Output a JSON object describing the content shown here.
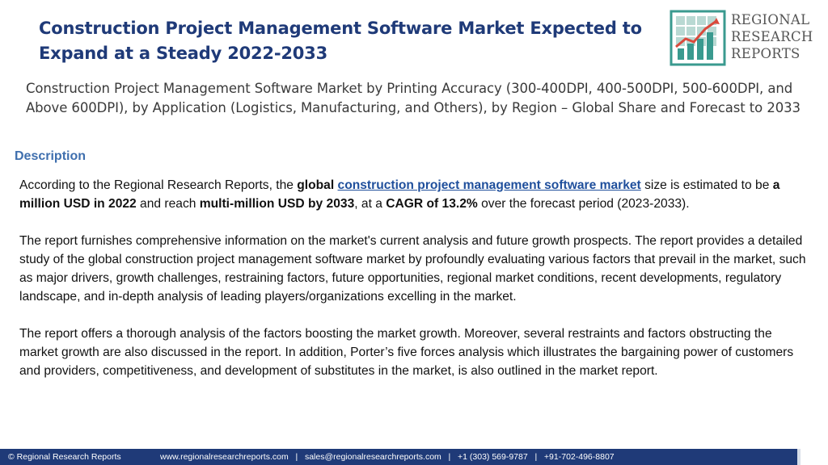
{
  "header": {
    "title_line1": "Construction Project Management Software Market Expected to",
    "title_line2": "Expand at a Steady 2022-2033"
  },
  "logo": {
    "line1": "REGIONAL",
    "line2": "RESEARCH",
    "line3": "REPORTS",
    "icon": "bar-chart-growth-icon",
    "colors": {
      "teal": "#3a9a8f",
      "red": "#d94a3c",
      "grid": "#b9d9d3"
    }
  },
  "subtitle": "Construction Project Management Software Market by Printing Accuracy (300-400DPI, 400-500DPI, 500-600DPI, and Above 600DPI), by Application (Logistics, Manufacturing, and Others), by Region – Global Share and Forecast to 2033",
  "description": {
    "heading": "Description",
    "p1": {
      "t1": "According to the Regional Research Reports, the ",
      "b1": "global",
      "t2": " ",
      "link": "construction project management software market",
      "t3": " size is estimated to be ",
      "b2": "a million USD in 2022",
      "t4": " and reach ",
      "b3": "multi-million USD by 2033",
      "t5": ", at a ",
      "b4": "CAGR of 13.2%",
      "t6": " over the forecast period (2023-2033)."
    },
    "p2": "The report furnishes comprehensive information on the market's current analysis and future growth prospects. The report provides a detailed study of the global construction project management software market by profoundly evaluating various factors that prevail in the market, such as major drivers, growth challenges, restraining factors, future opportunities, regional market conditions, recent developments, regulatory landscape, and in-depth analysis of leading players/organizations excelling in the market.",
    "p3": "The report offers a thorough analysis of the factors boosting the market growth. Moreover, several restraints and factors obstructing the market growth are also discussed in the report. In addition, Porter’s five forces analysis which illustrates the bargaining power of customers and providers, competitiveness, and development of substitutes in the market, is also outlined in the market report."
  },
  "footer": {
    "copyright": "© Regional Research Reports",
    "contacts": "www.regionalresearchreports.com   |   sales@regionalresearchreports.com   |   +1 (303) 569-9787   |   +91-702-496-8807"
  },
  "colors": {
    "title": "#1f3a78",
    "heading": "#3f6fae",
    "link": "#1f4f9c",
    "footer_bg": "#1f3a78"
  }
}
